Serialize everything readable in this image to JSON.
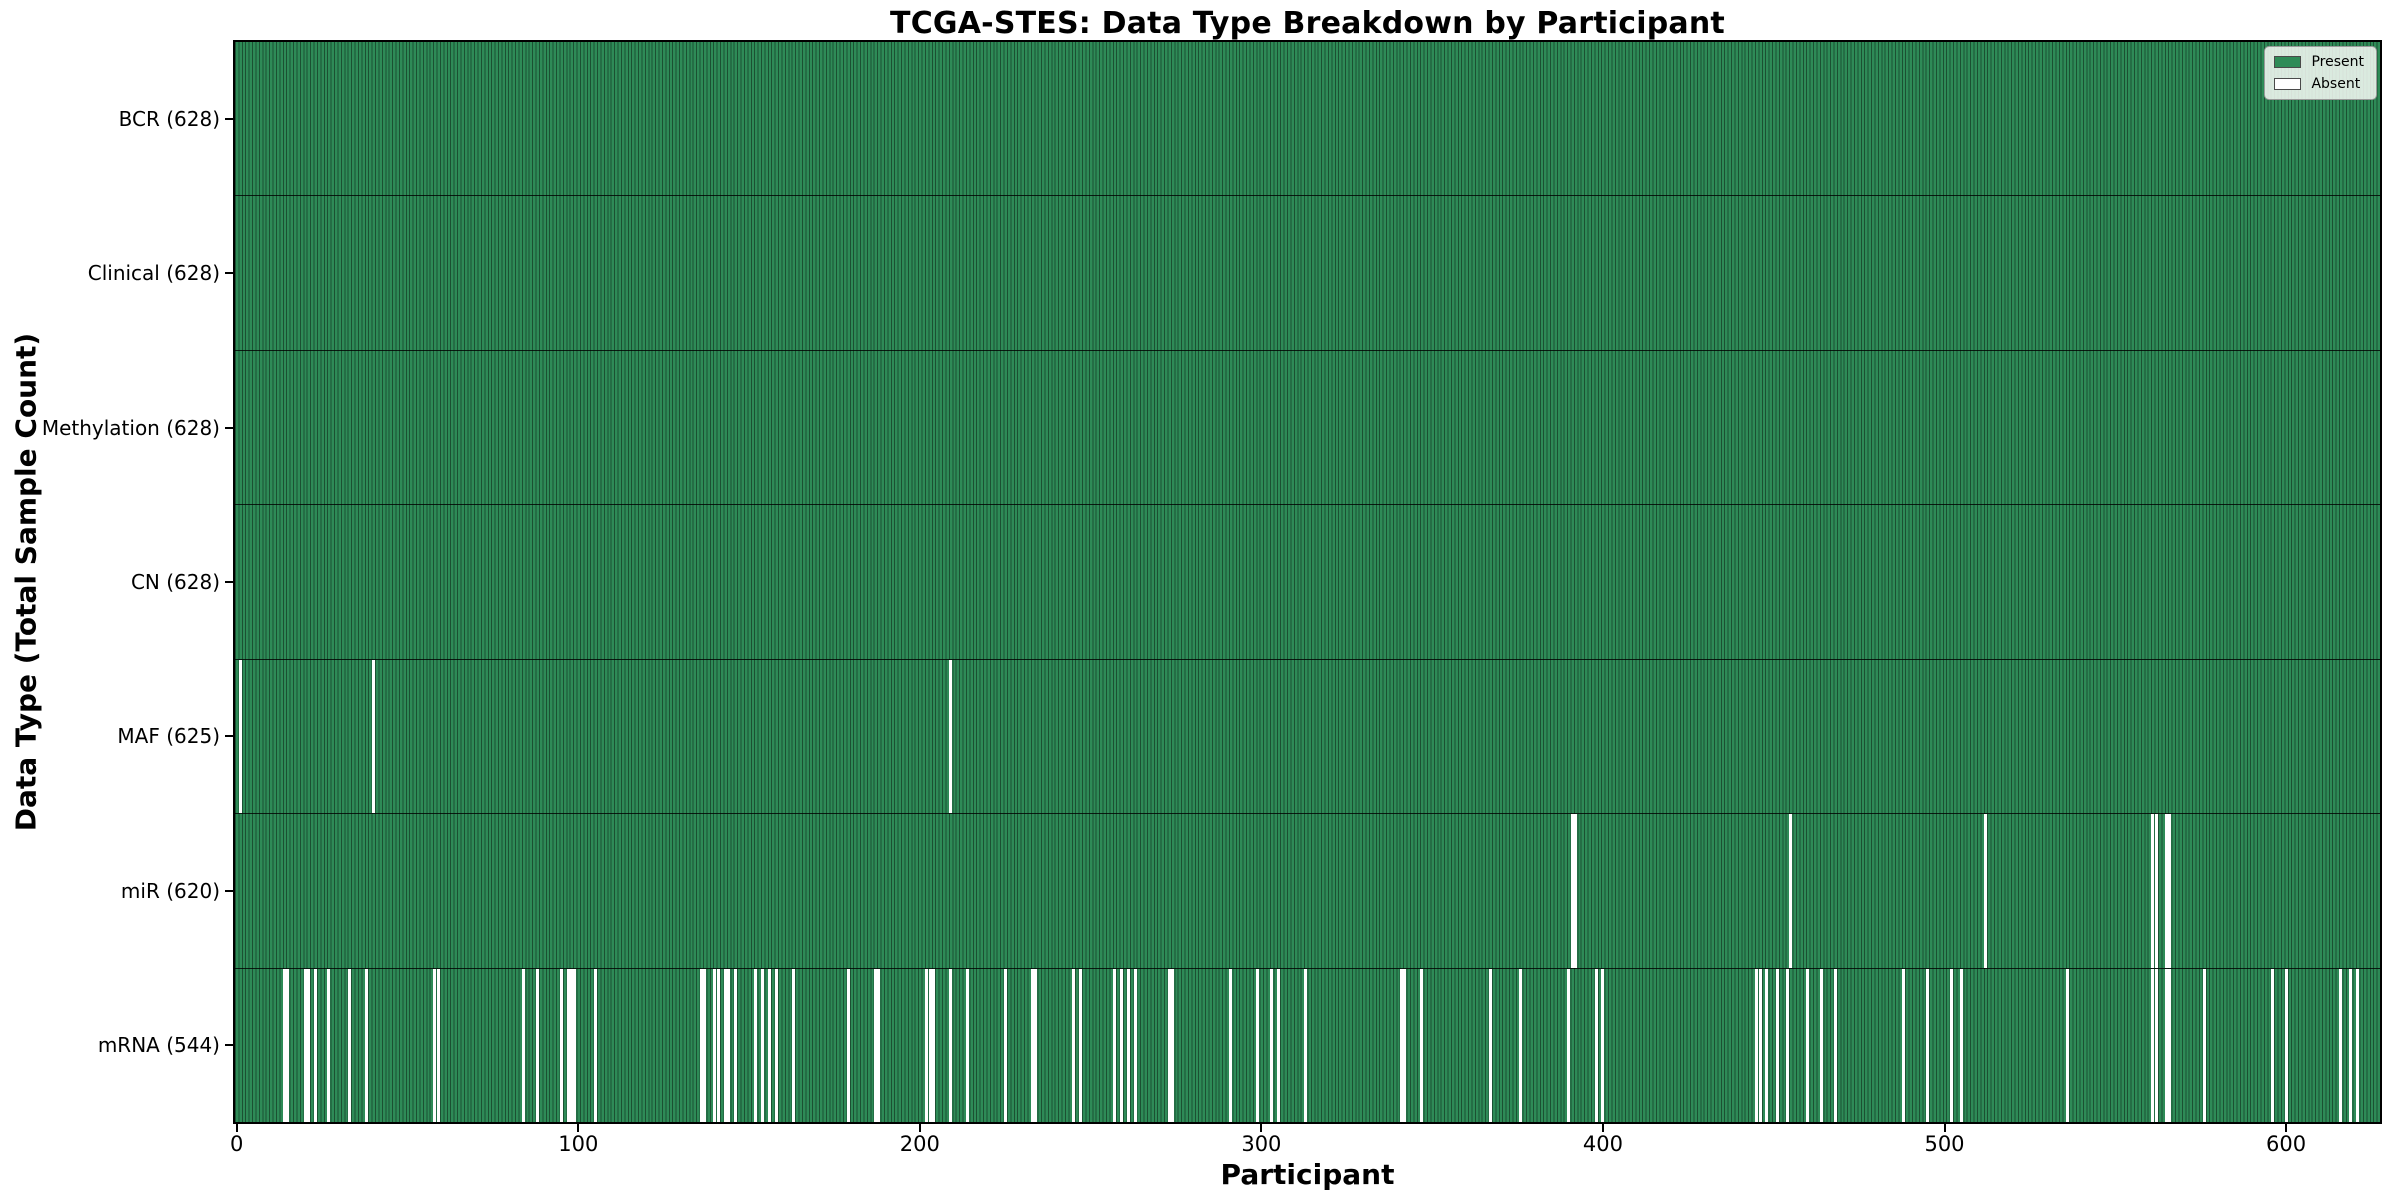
{
  "title": "TCGA-STES: Data Type Breakdown by Participant",
  "x_axis": {
    "label": "Participant",
    "ticks": [
      "0",
      "100",
      "200",
      "300",
      "400",
      "500",
      "600"
    ]
  },
  "y_axis": {
    "label": "Data Type (Total Sample Count)"
  },
  "legend": {
    "items": [
      {
        "label": "Present",
        "color": "#2e8b57"
      },
      {
        "label": "Absent",
        "color": "#ffffff"
      }
    ]
  },
  "colors": {
    "present": "#2e8b57",
    "absent": "#ffffff",
    "bar_edge": "#1c4f33",
    "frame": "#000000",
    "background": "#ffffff",
    "legend_background": "#f4f7f3",
    "legend_border": "#9a9a9a"
  },
  "chart_data": {
    "type": "heatmap",
    "title": "TCGA-STES: Data Type Breakdown by Participant",
    "xlabel": "Participant",
    "ylabel": "Data Type (Total Sample Count)",
    "legend_entries": [
      "Present",
      "Absent"
    ],
    "legend_position": "upper right",
    "grid": false,
    "n_participants": 628,
    "x_ticks": [
      0,
      100,
      200,
      300,
      400,
      500,
      600
    ],
    "x_range": [
      0,
      628
    ],
    "rows": [
      {
        "label": "BCR (628)",
        "data_type": "BCR",
        "total_present": 628,
        "absent_participants": []
      },
      {
        "label": "Clinical (628)",
        "data_type": "Clinical",
        "total_present": 628,
        "absent_participants": []
      },
      {
        "label": "Methylation (628)",
        "data_type": "Methylation",
        "total_present": 628,
        "absent_participants": []
      },
      {
        "label": "CN (628)",
        "data_type": "CN",
        "total_present": 628,
        "absent_participants": []
      },
      {
        "label": "MAF (625)",
        "data_type": "MAF",
        "total_present": 625,
        "absent_participants": [
          1,
          40,
          209
        ]
      },
      {
        "label": "miR (620)",
        "data_type": "miR",
        "total_present": 620,
        "absent_participants": [
          391,
          392,
          455,
          512,
          561,
          562,
          565,
          566
        ]
      },
      {
        "label": "mRNA (544)",
        "data_type": "mRNA",
        "total_present": 544,
        "absent_participants": [
          14,
          15,
          20,
          21,
          23,
          27,
          33,
          38,
          58,
          59,
          84,
          88,
          95,
          97,
          98,
          99,
          105,
          136,
          137,
          140,
          141,
          143,
          144,
          146,
          152,
          154,
          156,
          158,
          163,
          179,
          187,
          188,
          202,
          203,
          204,
          209,
          214,
          225,
          233,
          234,
          245,
          247,
          257,
          259,
          261,
          263,
          273,
          274,
          291,
          299,
          303,
          305,
          313,
          341,
          342,
          347,
          367,
          376,
          390,
          398,
          400,
          445,
          446,
          448,
          451,
          454,
          460,
          464,
          468,
          488,
          495,
          502,
          505,
          536,
          561,
          562,
          565,
          566,
          576,
          596,
          600,
          616,
          619,
          621
        ]
      }
    ]
  }
}
